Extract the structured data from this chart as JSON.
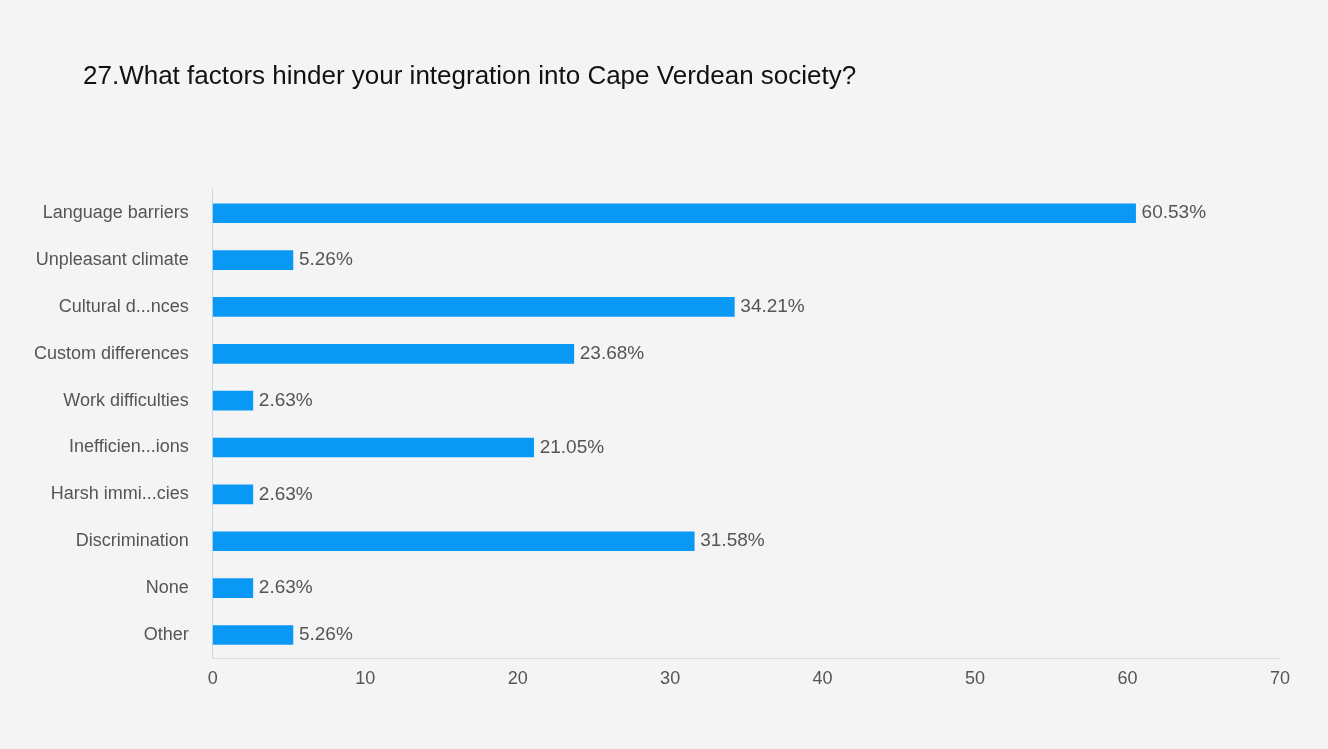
{
  "chart_data": {
    "type": "bar",
    "orientation": "horizontal",
    "title": "27.What factors hinder your integration into Cape Verdean society?",
    "categories": [
      "Language barriers",
      "Unpleasant climate",
      "Cultural d...nces",
      "Custom differences",
      "Work difficulties",
      "Inefficien...ions",
      "Harsh immi...cies",
      "Discrimination",
      "None",
      "Other"
    ],
    "values": [
      60.53,
      5.26,
      34.21,
      23.68,
      2.63,
      21.05,
      2.63,
      31.58,
      2.63,
      5.26
    ],
    "value_labels": [
      "60.53%",
      "5.26%",
      "34.21%",
      "23.68%",
      "2.63%",
      "21.05%",
      "2.63%",
      "31.58%",
      "2.63%",
      "5.26%"
    ],
    "color": "#0a98f5",
    "xlim": [
      0,
      70
    ],
    "xticks": [
      0,
      10,
      20,
      30,
      40,
      50,
      60,
      70
    ],
    "grid": false,
    "legend": false
  }
}
